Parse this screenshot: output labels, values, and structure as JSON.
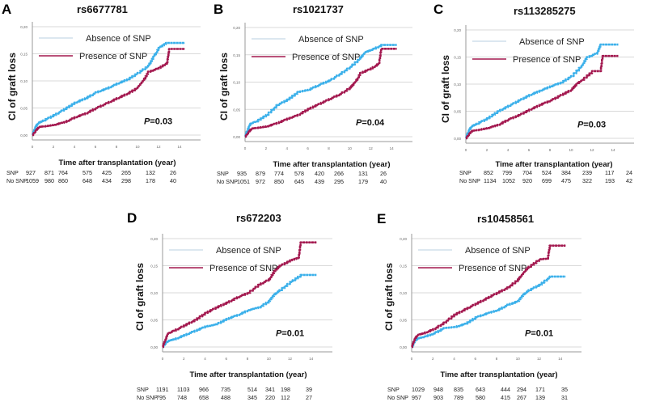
{
  "colors": {
    "absence": "#3bb0ea",
    "presence": "#a3184f",
    "grid": "#d9d9d9",
    "axis": "#999999"
  },
  "chart_data": [
    {
      "type": "line",
      "panel": "A",
      "title": "rs6677781",
      "xlabel": "Time after transplantation (year)",
      "ylabel": "CI of graft loss",
      "xlim": [
        0,
        16
      ],
      "ylim": [
        0,
        0.2
      ],
      "xticks": [
        "0",
        "2",
        "4",
        "6",
        "8",
        "10",
        "12",
        "14"
      ],
      "yticks": [
        "0,00",
        "0,05",
        "0,10",
        "0,15",
        "0,20"
      ],
      "grid": true,
      "legend": {
        "placement": "top-left",
        "entries": [
          "Absence of SNP",
          "Presence of SNP"
        ]
      },
      "annotation": {
        "p_label": "P",
        "p_value": "=0.03"
      },
      "series": [
        {
          "name": "Absence of SNP",
          "x": [
            0,
            0.2,
            0.5,
            1,
            2,
            3,
            4,
            5,
            6,
            7,
            8,
            9,
            10,
            11,
            11.5,
            12,
            12.7,
            14.5
          ],
          "y": [
            0,
            0.012,
            0.022,
            0.027,
            0.037,
            0.048,
            0.06,
            0.068,
            0.079,
            0.086,
            0.095,
            0.103,
            0.115,
            0.128,
            0.145,
            0.161,
            0.17,
            0.17
          ]
        },
        {
          "name": "Presence of SNP",
          "x": [
            0,
            0.3,
            0.6,
            1,
            2,
            3,
            4,
            5,
            6,
            7,
            8,
            9,
            10,
            10.5,
            11,
            12,
            12.8,
            13,
            14.5
          ],
          "y": [
            0,
            0.008,
            0.015,
            0.016,
            0.019,
            0.024,
            0.033,
            0.04,
            0.05,
            0.059,
            0.068,
            0.077,
            0.088,
            0.1,
            0.117,
            0.124,
            0.134,
            0.159,
            0.159
          ]
        }
      ],
      "risk_table": {
        "rows": [
          {
            "label": "SNP",
            "values": [
              "927",
              "871",
              "764",
              "575",
              "425",
              "265",
              "132",
              "26"
            ]
          },
          {
            "label": "No SNP",
            "values": [
              "1059",
              "980",
              "860",
              "648",
              "434",
              "298",
              "178",
              "40"
            ]
          }
        ]
      }
    },
    {
      "type": "line",
      "panel": "B",
      "title": "rs1021737",
      "xlabel": "Time after transplantation (year)",
      "ylabel": "CI of graft loss",
      "xlim": [
        0,
        16
      ],
      "ylim": [
        0,
        0.2
      ],
      "xticks": [
        "0",
        "2",
        "4",
        "6",
        "8",
        "10",
        "12",
        "14"
      ],
      "yticks": [
        "0,00",
        "0,05",
        "0,10",
        "0,15",
        "0,20"
      ],
      "grid": true,
      "legend": {
        "placement": "top-left",
        "entries": [
          "Absence of SNP",
          "Presence of SNP"
        ]
      },
      "annotation": {
        "p_label": "P",
        "p_value": "=0.04"
      },
      "series": [
        {
          "name": "Absence of SNP",
          "x": [
            0,
            0.2,
            0.5,
            1,
            2,
            3,
            4,
            5,
            6,
            7,
            8,
            9,
            10,
            11,
            11.5,
            12,
            13,
            14.5
          ],
          "y": [
            0,
            0.012,
            0.024,
            0.028,
            0.04,
            0.058,
            0.068,
            0.082,
            0.086,
            0.095,
            0.103,
            0.115,
            0.128,
            0.145,
            0.155,
            0.159,
            0.168,
            0.168
          ]
        },
        {
          "name": "Presence of SNP",
          "x": [
            0,
            0.3,
            0.6,
            1,
            2,
            3,
            4,
            5,
            6,
            7,
            8,
            9,
            10,
            10.5,
            11,
            12,
            12.8,
            13,
            14.5
          ],
          "y": [
            0,
            0.008,
            0.015,
            0.016,
            0.019,
            0.025,
            0.033,
            0.04,
            0.051,
            0.06,
            0.069,
            0.078,
            0.09,
            0.1,
            0.117,
            0.125,
            0.135,
            0.161,
            0.161
          ]
        }
      ],
      "risk_table": {
        "rows": [
          {
            "label": "SNP",
            "values": [
              "935",
              "879",
              "774",
              "578",
              "420",
              "266",
              "131",
              "26"
            ]
          },
          {
            "label": "No SNP",
            "values": [
              "1051",
              "972",
              "850",
              "645",
              "439",
              "295",
              "179",
              "40"
            ]
          }
        ]
      }
    },
    {
      "type": "line",
      "panel": "C",
      "title": "rs113285275",
      "xlabel": "Time after transplantation (year)",
      "ylabel": "CI of graft loss",
      "xlim": [
        0,
        16
      ],
      "ylim": [
        0,
        0.2
      ],
      "xticks": [
        "0",
        "2",
        "4",
        "6",
        "8",
        "10",
        "12",
        "14"
      ],
      "yticks": [
        "0,00",
        "0,05",
        "0,10",
        "0,15",
        "0,20"
      ],
      "grid": true,
      "legend": {
        "placement": "top-left",
        "entries": [
          "Absence of SNP",
          "Presence of SNP"
        ]
      },
      "annotation": {
        "p_label": "P",
        "p_value": "=0.03"
      },
      "series": [
        {
          "name": "Absence of SNP",
          "x": [
            0,
            0.2,
            0.5,
            1,
            2,
            3,
            4,
            5,
            6,
            7,
            8,
            9,
            10,
            11,
            11.5,
            12.5,
            12.8,
            14.5
          ],
          "y": [
            0,
            0.012,
            0.022,
            0.027,
            0.037,
            0.05,
            0.06,
            0.07,
            0.08,
            0.088,
            0.096,
            0.103,
            0.115,
            0.135,
            0.15,
            0.158,
            0.173,
            0.173
          ]
        },
        {
          "name": "Presence of SNP",
          "x": [
            0,
            0.3,
            0.6,
            1,
            2,
            3,
            4,
            5,
            6,
            7,
            8,
            9,
            10,
            10.5,
            11,
            12,
            12.8,
            13,
            14.5
          ],
          "y": [
            0,
            0.008,
            0.014,
            0.015,
            0.019,
            0.025,
            0.035,
            0.043,
            0.053,
            0.062,
            0.07,
            0.08,
            0.09,
            0.1,
            0.108,
            0.124,
            0.124,
            0.152,
            0.152
          ]
        }
      ],
      "risk_table": {
        "rows": [
          {
            "label": "SNP",
            "values": [
              "852",
              "799",
              "704",
              "524",
              "384",
              "239",
              "117",
              "24"
            ]
          },
          {
            "label": "No SNP",
            "values": [
              "1134",
              "1052",
              "920",
              "699",
              "475",
              "322",
              "193",
              "42"
            ]
          }
        ]
      }
    },
    {
      "type": "line",
      "panel": "D",
      "title": "rs672203",
      "xlabel": "Time after transplantation (year)",
      "ylabel": "CI of graft loss",
      "xlim": [
        0,
        16
      ],
      "ylim": [
        0,
        0.2
      ],
      "xticks": [
        "0",
        "2",
        "4",
        "6",
        "8",
        "10",
        "12",
        "14"
      ],
      "yticks": [
        "0,00",
        "0,05",
        "0,10",
        "0,15",
        "0,20"
      ],
      "grid": true,
      "legend": {
        "placement": "top-left",
        "entries": [
          "Absence of SNP",
          "Presence of SNP"
        ]
      },
      "annotation": {
        "p_label": "P",
        "p_value": "=0.01"
      },
      "series": [
        {
          "name": "Absence of SNP",
          "x": [
            0,
            0.3,
            0.6,
            1,
            2,
            3,
            4,
            5,
            6,
            7,
            8,
            9,
            10,
            10.5,
            11,
            12,
            13,
            14.5
          ],
          "y": [
            0,
            0.008,
            0.012,
            0.014,
            0.022,
            0.03,
            0.038,
            0.042,
            0.052,
            0.059,
            0.068,
            0.073,
            0.085,
            0.097,
            0.105,
            0.12,
            0.133,
            0.133
          ]
        },
        {
          "name": "Presence of SNP",
          "x": [
            0,
            0.2,
            0.5,
            1,
            2,
            3,
            4,
            5,
            6,
            7,
            8,
            9,
            10,
            10.5,
            11,
            12,
            12.8,
            13,
            14.5
          ],
          "y": [
            0,
            0.012,
            0.025,
            0.03,
            0.04,
            0.05,
            0.063,
            0.073,
            0.082,
            0.092,
            0.1,
            0.115,
            0.125,
            0.14,
            0.15,
            0.16,
            0.165,
            0.193,
            0.193
          ]
        }
      ],
      "risk_table": {
        "rows": [
          {
            "label": "SNP",
            "values": [
              "1191",
              "1103",
              "966",
              "735",
              "514",
              "341",
              "198",
              "39"
            ]
          },
          {
            "label": "No SNP",
            "values": [
              "795",
              "748",
              "658",
              "488",
              "345",
              "220",
              "112",
              "27"
            ]
          }
        ]
      }
    },
    {
      "type": "line",
      "panel": "E",
      "title": "rs10458561",
      "xlabel": "Time after transplantation (year)",
      "ylabel": "CI of graft loss",
      "xlim": [
        0,
        16
      ],
      "ylim": [
        0,
        0.2
      ],
      "xticks": [
        "0",
        "2",
        "4",
        "6",
        "8",
        "10",
        "12",
        "14"
      ],
      "yticks": [
        "0,00",
        "0,05",
        "0,10",
        "0,15",
        "0,20"
      ],
      "grid": true,
      "legend": {
        "placement": "top-left",
        "entries": [
          "Absence of SNP",
          "Presence of SNP"
        ]
      },
      "annotation": {
        "p_label": "P",
        "p_value": "=0.01"
      },
      "series": [
        {
          "name": "Absence of SNP",
          "x": [
            0,
            0.3,
            0.6,
            1,
            2,
            3,
            4,
            5,
            6,
            7,
            8,
            9,
            10,
            10.5,
            11,
            12,
            13,
            14.5
          ],
          "y": [
            0,
            0.012,
            0.016,
            0.018,
            0.025,
            0.035,
            0.037,
            0.043,
            0.055,
            0.062,
            0.068,
            0.078,
            0.085,
            0.097,
            0.105,
            0.115,
            0.13,
            0.13
          ]
        },
        {
          "name": "Presence of SNP",
          "x": [
            0,
            0.2,
            0.5,
            1,
            2,
            3,
            4,
            5,
            6,
            7,
            8,
            9,
            10,
            10.5,
            11,
            12,
            12.8,
            13,
            14.5
          ],
          "y": [
            0,
            0.012,
            0.022,
            0.025,
            0.033,
            0.045,
            0.06,
            0.07,
            0.08,
            0.09,
            0.1,
            0.11,
            0.125,
            0.138,
            0.148,
            0.162,
            0.163,
            0.187,
            0.187
          ]
        }
      ],
      "risk_table": {
        "rows": [
          {
            "label": "SNP",
            "values": [
              "1029",
              "948",
              "835",
              "643",
              "444",
              "294",
              "171",
              "35"
            ]
          },
          {
            "label": "No SNP",
            "values": [
              "957",
              "903",
              "789",
              "580",
              "415",
              "267",
              "139",
              "31"
            ]
          }
        ]
      }
    }
  ]
}
